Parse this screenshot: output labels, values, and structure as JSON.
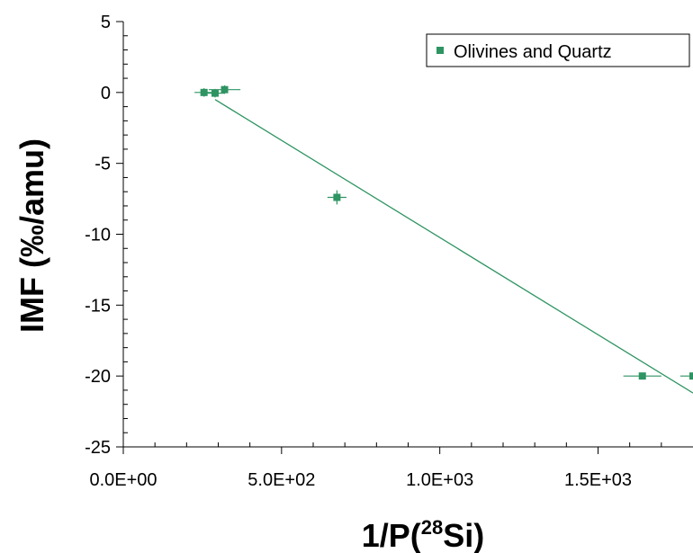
{
  "chart_data": {
    "type": "scatter",
    "xlabel_main": "1/P(",
    "xlabel_sup": "28",
    "xlabel_tail": "Si)",
    "ylabel": "IMF (‰/amu)",
    "xlim": [
      0,
      1800
    ],
    "ylim": [
      -25,
      5
    ],
    "x_ticks": [
      0,
      500,
      1000,
      1500
    ],
    "x_tick_labels": [
      "0.0E+00",
      "5.0E+02",
      "1.0E+03",
      "1.5E+03"
    ],
    "x_minor_ticks": [
      100,
      200,
      300,
      400,
      600,
      700,
      800,
      900,
      1100,
      1200,
      1300,
      1400,
      1600,
      1700
    ],
    "y_ticks": [
      5,
      0,
      -5,
      -10,
      -15,
      -20,
      -25
    ],
    "y_tick_labels": [
      "5",
      "0",
      "-5",
      "-10",
      "-15",
      "-20",
      "-25"
    ],
    "y_minor_ticks": [
      4,
      3,
      2,
      1,
      -1,
      -2,
      -3,
      -4,
      -6,
      -7,
      -8,
      -9,
      -11,
      -12,
      -13,
      -14,
      -16,
      -17,
      -18,
      -19,
      -21,
      -22,
      -23,
      -24
    ],
    "grid": false,
    "legend_position": "top-right",
    "series": [
      {
        "name": "Olivines and Quartz",
        "color": "#2e9462",
        "marker": "square",
        "points": [
          {
            "x": 255,
            "y": 0.0,
            "xerr": 30,
            "yerr": 0.3
          },
          {
            "x": 290,
            "y": -0.05,
            "xerr": 30,
            "yerr": 0.3
          },
          {
            "x": 320,
            "y": 0.2,
            "xerr": 50,
            "yerr": 0.3
          },
          {
            "x": 675,
            "y": -7.4,
            "xerr": 30,
            "yerr": 0.5
          },
          {
            "x": 1640,
            "y": -20.0,
            "xerr": 60,
            "yerr": 0.2
          },
          {
            "x": 1800,
            "y": -20.0,
            "xerr": 40,
            "yerr": 0.2
          }
        ]
      }
    ],
    "trendline": {
      "color": "#2e9462",
      "x": [
        290,
        1800
      ],
      "y": [
        -0.5,
        -21.2
      ]
    }
  }
}
